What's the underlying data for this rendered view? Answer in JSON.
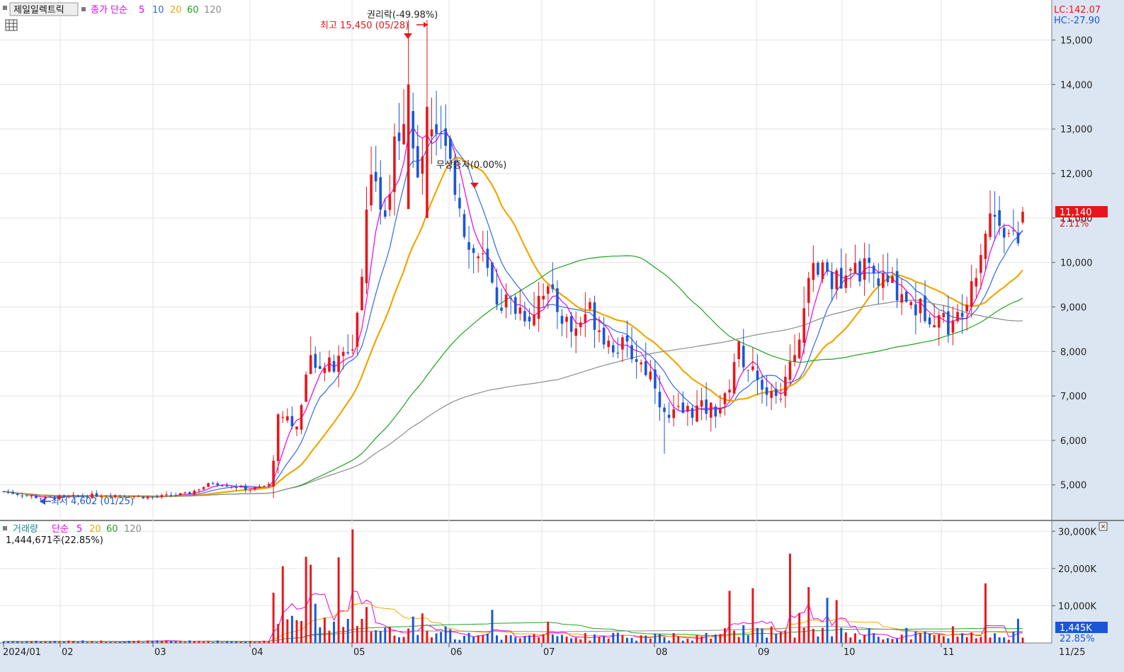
{
  "header": {
    "stock_name": "제일일렉트릭",
    "ma_label": "종가 단순",
    "ma_periods": [
      "5",
      "10",
      "20",
      "60",
      "120"
    ],
    "ma_colors": [
      "#e600e6",
      "#2e6be6",
      "#f0a800",
      "#1fa41f",
      "#8c8c8c"
    ]
  },
  "readouts": {
    "lc": "LC:142.07",
    "hc": "HC:-27.90"
  },
  "price_tag": {
    "value": "11,140",
    "change": "2.11%"
  },
  "annotations": {
    "high": "최고 15,450 (05/28)",
    "low": "최저 4,602 (01/25)",
    "ex_rights": "권리락(-49.98%)",
    "bonus_issue": "무상증자(0.00%)"
  },
  "volume_panel": {
    "label": "거래량",
    "ma_label": "단순",
    "ma_periods": [
      "5",
      "20",
      "60",
      "120"
    ],
    "current": "1,444,671주(22.85%)",
    "tag_value": "1,445K",
    "tag_pct": "22.85%",
    "axis_ticks": [
      "10,000K",
      "20,000K",
      "30,000K"
    ]
  },
  "x_axis_labels": [
    "2024/01",
    "02",
    "03",
    "04",
    "05",
    "06",
    "07",
    "08",
    "09",
    "10",
    "11",
    "11/25"
  ],
  "chart_data": {
    "type": "candlestick",
    "y_price_ticks": [
      5000,
      6000,
      7000,
      8000,
      9000,
      10000,
      11000,
      12000,
      13000,
      14000,
      15000
    ],
    "y_price_tick_labels": [
      "5,000",
      "6,000",
      "7,000",
      "8,000",
      "9,000",
      "10,000",
      "11,000",
      "12,000",
      "13,000",
      "14,000",
      "15,000"
    ],
    "y_price_range": [
      4200,
      15900
    ],
    "y_volume_range": [
      0,
      31000
    ],
    "colors": {
      "up": "#e8161b",
      "down": "#1a56d6"
    },
    "monthly_closes": [
      {
        "month": "2024/01",
        "close": 4700
      },
      {
        "month": "02",
        "close": 4800
      },
      {
        "month": "03",
        "close": 4800
      },
      {
        "month": "04",
        "close": 7900
      },
      {
        "month": "05",
        "close": 11000
      },
      {
        "month": "06",
        "close": 9600
      },
      {
        "month": "07",
        "close": 8500
      },
      {
        "month": "08",
        "close": 6700
      },
      {
        "month": "09",
        "close": 9300
      },
      {
        "month": "10",
        "close": 8900
      },
      {
        "month": "11",
        "close": 11140
      }
    ],
    "last_close": 11140,
    "last_change_pct": 2.11
  }
}
